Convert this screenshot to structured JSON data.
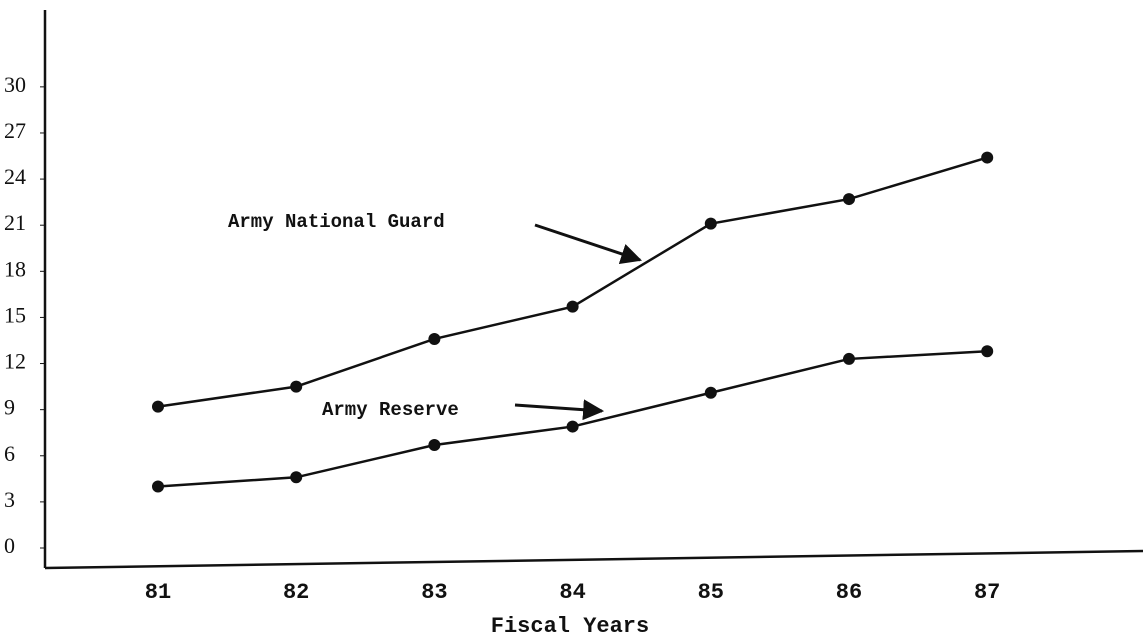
{
  "chart_data": {
    "type": "line",
    "x_label": "Fiscal Years",
    "categories": [
      "81",
      "82",
      "83",
      "84",
      "85",
      "86",
      "87"
    ],
    "series": [
      {
        "name": "Army National Guard",
        "color": "#111111",
        "values": [
          9.2,
          10.5,
          13.6,
          15.7,
          21.1,
          22.7,
          25.4
        ]
      },
      {
        "name": "Army Reserve",
        "color": "#111111",
        "values": [
          4.0,
          4.6,
          6.7,
          7.9,
          10.1,
          12.3,
          12.8
        ]
      }
    ],
    "ylim": [
      0,
      35
    ],
    "yticks": [
      0,
      3,
      6,
      9,
      12,
      15,
      18,
      21,
      24,
      27,
      30
    ],
    "grid": false
  }
}
